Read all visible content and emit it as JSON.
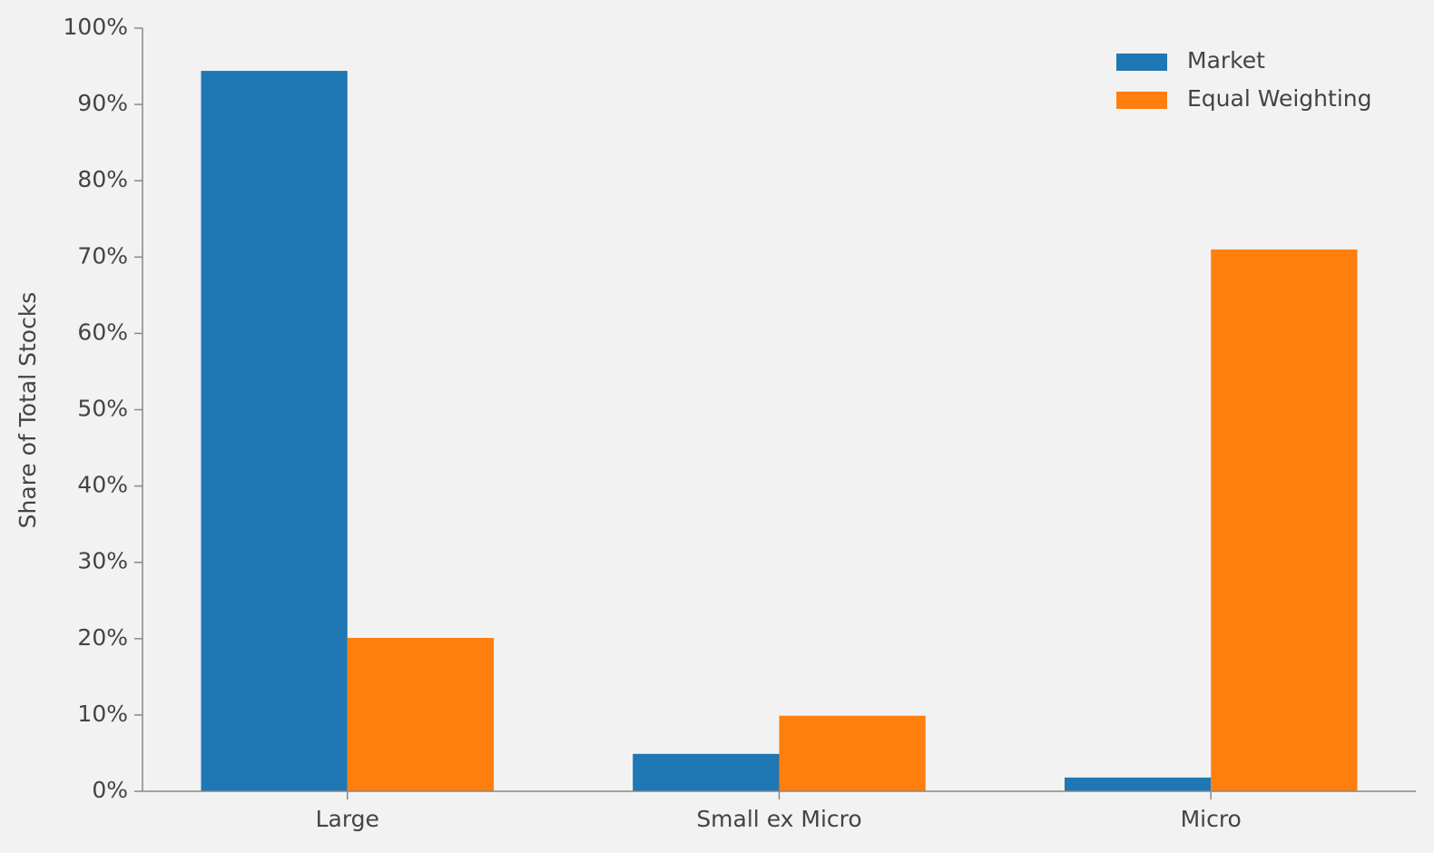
{
  "chart_data": {
    "type": "bar",
    "y_label": "Share of Total Stocks",
    "categories": [
      "Large",
      "Small ex Micro",
      "Micro"
    ],
    "series": [
      {
        "name": "Market",
        "color": "#1f77b4",
        "values": [
          94.4,
          4.9,
          1.8
        ]
      },
      {
        "name": "Equal Weighting",
        "color": "#ff7f0e",
        "values": [
          20.1,
          9.9,
          71.0
        ]
      }
    ],
    "ylim": [
      0,
      100
    ],
    "yticks": [
      {
        "value": 0,
        "label": "0%"
      },
      {
        "value": 10,
        "label": "10%"
      },
      {
        "value": 20,
        "label": "20%"
      },
      {
        "value": 30,
        "label": "30%"
      },
      {
        "value": 40,
        "label": "40%"
      },
      {
        "value": 50,
        "label": "50%"
      },
      {
        "value": 60,
        "label": "60%"
      },
      {
        "value": 70,
        "label": "70%"
      },
      {
        "value": 80,
        "label": "80%"
      },
      {
        "value": 90,
        "label": "90%"
      },
      {
        "value": 100,
        "label": "100%"
      }
    ],
    "legend": "upper right"
  }
}
